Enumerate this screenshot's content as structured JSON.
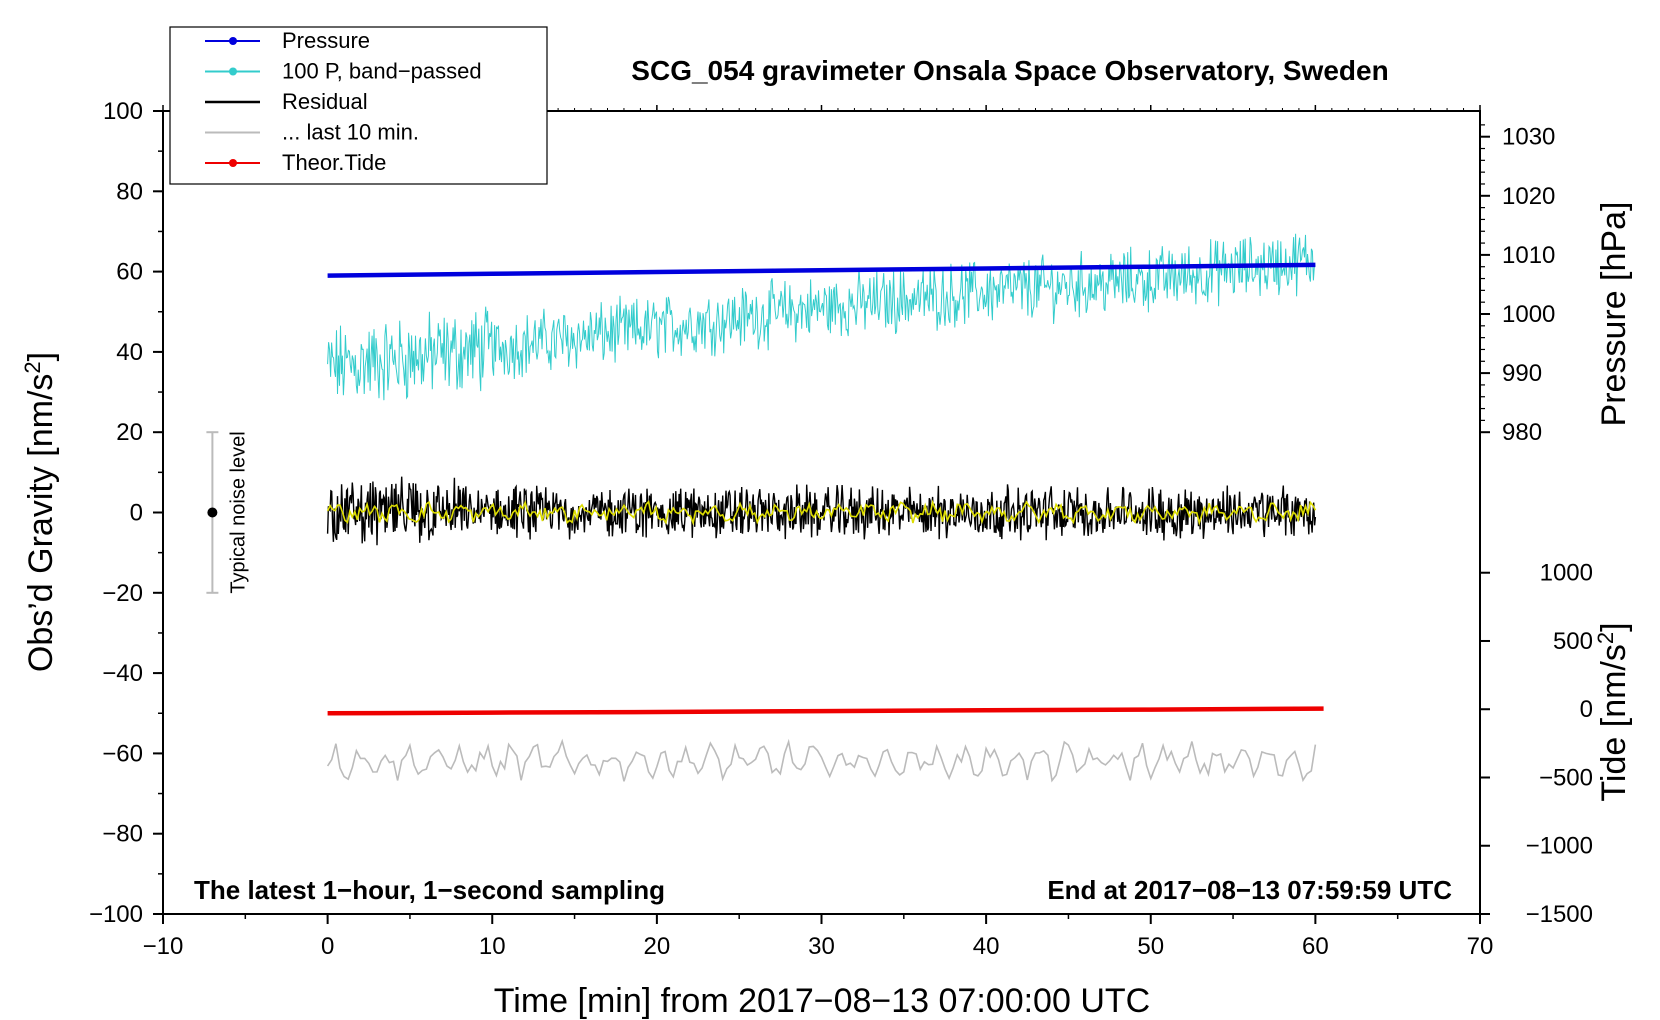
{
  "chart_data": {
    "type": "line",
    "title": "SCG_054 gravimeter Onsala Space Observatory, Sweden",
    "xlabel": "Time [min] from 2017−08−13 07:00:00 UTC",
    "ylabel_left": "Obs’d Gravity [nm/s",
    "ylabel_left_sup": "2",
    "ylabel_left_close": "]",
    "ylabel_right_pressure": "Pressure [hPa]",
    "ylabel_right_tide": "Tide [nm/s",
    "ylabel_right_tide_sup": "2",
    "ylabel_right_tide_close": "]",
    "xlim": [
      -10,
      70
    ],
    "ylim_left": [
      -100,
      100
    ],
    "x_ticks": [
      "−10",
      "0",
      "10",
      "20",
      "30",
      "40",
      "50",
      "60",
      "70"
    ],
    "x_tick_values": [
      -10,
      0,
      10,
      20,
      30,
      40,
      50,
      60,
      70
    ],
    "y_left_ticks": [
      "−100",
      "−80",
      "−60",
      "−40",
      "−20",
      "0",
      "20",
      "40",
      "60",
      "80",
      "100"
    ],
    "y_left_tick_values": [
      -100,
      -80,
      -60,
      -40,
      -20,
      0,
      20,
      40,
      60,
      80,
      100
    ],
    "pressure_axis": {
      "ticks": [
        "980",
        "990",
        "1000",
        "1010",
        "1020",
        "1030"
      ],
      "tick_values": [
        980,
        990,
        1000,
        1010,
        1020,
        1030
      ],
      "range": [
        980,
        1030
      ],
      "left_equiv": [
        20,
        93.6
      ]
    },
    "tide_axis": {
      "ticks": [
        "−1500",
        "−1000",
        "−500",
        "0",
        "500",
        "1000"
      ],
      "tick_values": [
        -1500,
        -1000,
        -500,
        0,
        500,
        1000
      ],
      "range": [
        -1500,
        1000
      ],
      "left_equiv": [
        -100,
        -15
      ]
    },
    "legend": [
      {
        "label": "Pressure",
        "color": "#0000dd",
        "marker": true
      },
      {
        "label": "100 P, band−passed",
        "color": "#33cccc",
        "marker": true
      },
      {
        "label": "Residual",
        "color": "#000000",
        "marker": false
      },
      {
        "label": "... last 10 min.",
        "color": "#bbbbbb",
        "marker": false
      },
      {
        "label": "Theor.Tide",
        "color": "#ee0000",
        "marker": true
      }
    ],
    "series": [
      {
        "name": "Pressure",
        "color": "#0000dd",
        "axis": "pressure",
        "x": [
          0,
          10,
          20,
          30,
          40,
          50,
          60
        ],
        "values": [
          1006.5,
          1006.8,
          1007.1,
          1007.4,
          1007.7,
          1008.0,
          1008.3
        ]
      },
      {
        "name": "100 P, band−passed",
        "color": "#33cccc",
        "axis": "left",
        "x": [
          0,
          10,
          20,
          30,
          40,
          50,
          60
        ],
        "trend": [
          36,
          41,
          46,
          51,
          55,
          58,
          63
        ],
        "amplitude": 7
      },
      {
        "name": "Residual",
        "color": "#000000",
        "axis": "left",
        "x": [
          0,
          10,
          20,
          30,
          40,
          50,
          60
        ],
        "trend": [
          0,
          0,
          0,
          0,
          0,
          0,
          0
        ],
        "amplitude": 5
      },
      {
        "name": "... last 10 min.",
        "color": "#bbbbbb",
        "axis": "left",
        "x": [
          0,
          60
        ],
        "trend": [
          -62,
          -62
        ],
        "amplitude": 4
      },
      {
        "name": "Theor.Tide",
        "color": "#ee0000",
        "axis": "tide",
        "x": [
          0,
          10,
          20,
          30,
          40,
          50,
          60.5
        ],
        "values": [
          -30,
          -25,
          -20,
          -14,
          -8,
          -3,
          5
        ]
      }
    ],
    "noise_bar": {
      "label": "Typical noise level",
      "x": -7,
      "center": 0,
      "low": -20,
      "high": 20
    },
    "bottom_left_note": "The latest 1−hour, 1−second sampling",
    "bottom_right_note": "End at 2017−08−13 07:59:59 UTC",
    "colors": {
      "smoothed_residual": "#dddd00"
    }
  }
}
